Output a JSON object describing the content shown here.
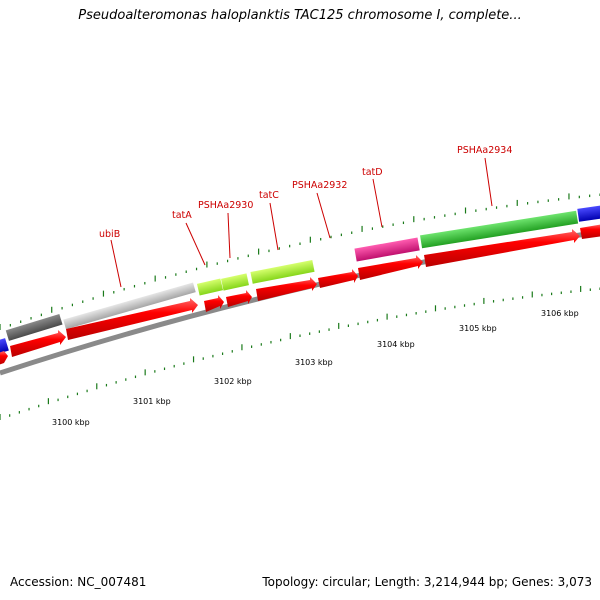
{
  "header": {
    "title": "Pseudoalteromonas haloplanktis TAC125 chromosome I, complete..."
  },
  "footer": {
    "accession": "Accession: NC_007481",
    "summary": "Topology: circular; Length: 3,214,944 bp; Genes: 3,073"
  },
  "colors": {
    "cds": "#ff0000",
    "gray_dark": "#6f6f6f",
    "gray_light": "#c8c8c8",
    "yellowgreen": "#adff2f",
    "magenta": "#ee1e8c",
    "green": "#3cc83c",
    "blue": "#1010ee",
    "ticks": "#1a7a1a",
    "backbone": "#888888"
  },
  "gene_labels": [
    "ubiB",
    "tatA",
    "PSHAa2930",
    "tatC",
    "PSHAa2932",
    "tatD",
    "PSHAa2934"
  ],
  "kbp_labels": [
    "3100 kbp",
    "3101 kbp",
    "3102 kbp",
    "3103 kbp",
    "3104 kbp",
    "3105 kbp",
    "3106 kbp"
  ]
}
